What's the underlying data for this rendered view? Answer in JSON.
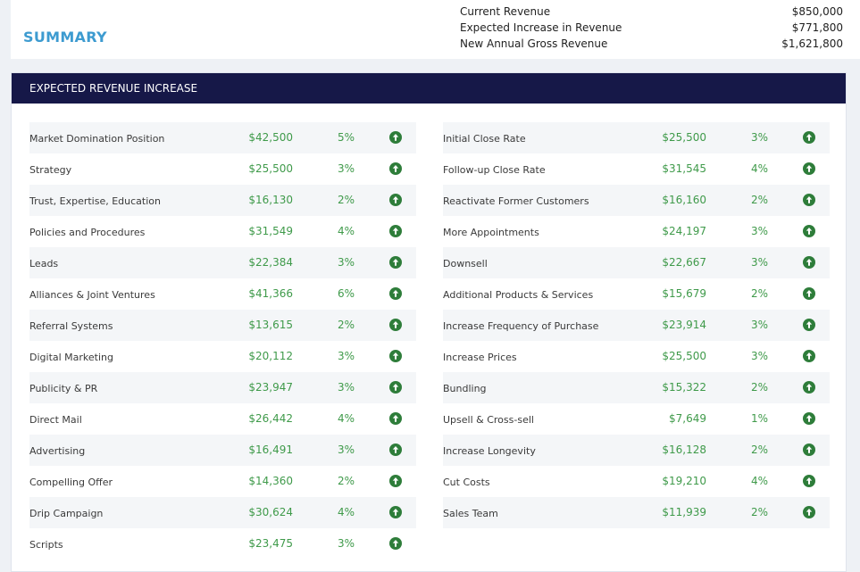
{
  "summary": {
    "title": "SUMMARY",
    "rows": [
      {
        "label": "Current Revenue",
        "value": "$850,000"
      },
      {
        "label": "Expected Increase in Revenue",
        "value": "$771,800"
      },
      {
        "label": "New Annual Gross Revenue",
        "value": "$1,621,800"
      }
    ]
  },
  "revenue": {
    "header": "EXPECTED REVENUE INCREASE",
    "icon": "arrow-up-circle-icon",
    "icon_color": "#2e7d3a",
    "value_color": "#3f9a4a",
    "header_color": "#161848",
    "left": [
      {
        "name": "Market Domination Position",
        "amount": "$42,500",
        "pct": "5%"
      },
      {
        "name": "Strategy",
        "amount": "$25,500",
        "pct": "3%"
      },
      {
        "name": "Trust, Expertise, Education",
        "amount": "$16,130",
        "pct": "2%"
      },
      {
        "name": "Policies and Procedures",
        "amount": "$31,549",
        "pct": "4%"
      },
      {
        "name": "Leads",
        "amount": "$22,384",
        "pct": "3%"
      },
      {
        "name": "Alliances & Joint Ventures",
        "amount": "$41,366",
        "pct": "6%"
      },
      {
        "name": "Referral Systems",
        "amount": "$13,615",
        "pct": "2%"
      },
      {
        "name": "Digital Marketing",
        "amount": "$20,112",
        "pct": "3%"
      },
      {
        "name": "Publicity & PR",
        "amount": "$23,947",
        "pct": "3%"
      },
      {
        "name": "Direct Mail",
        "amount": "$26,442",
        "pct": "4%"
      },
      {
        "name": "Advertising",
        "amount": "$16,491",
        "pct": "3%"
      },
      {
        "name": "Compelling Offer",
        "amount": "$14,360",
        "pct": "2%"
      },
      {
        "name": "Drip Campaign",
        "amount": "$30,624",
        "pct": "4%"
      },
      {
        "name": "Scripts",
        "amount": "$23,475",
        "pct": "3%"
      }
    ],
    "right": [
      {
        "name": "Initial Close Rate",
        "amount": "$25,500",
        "pct": "3%"
      },
      {
        "name": "Follow-up Close Rate",
        "amount": "$31,545",
        "pct": "4%"
      },
      {
        "name": "Reactivate Former Customers",
        "amount": "$16,160",
        "pct": "2%"
      },
      {
        "name": "More Appointments",
        "amount": "$24,197",
        "pct": "3%"
      },
      {
        "name": "Downsell",
        "amount": "$22,667",
        "pct": "3%"
      },
      {
        "name": "Additional Products & Services",
        "amount": "$15,679",
        "pct": "2%"
      },
      {
        "name": "Increase Frequency of Purchase",
        "amount": "$23,914",
        "pct": "3%"
      },
      {
        "name": "Increase Prices",
        "amount": "$25,500",
        "pct": "3%"
      },
      {
        "name": "Bundling",
        "amount": "$15,322",
        "pct": "2%"
      },
      {
        "name": "Upsell & Cross-sell",
        "amount": "$7,649",
        "pct": "1%"
      },
      {
        "name": "Increase Longevity",
        "amount": "$16,128",
        "pct": "2%"
      },
      {
        "name": "Cut Costs",
        "amount": "$19,210",
        "pct": "4%"
      },
      {
        "name": "Sales Team",
        "amount": "$11,939",
        "pct": "2%"
      }
    ]
  }
}
